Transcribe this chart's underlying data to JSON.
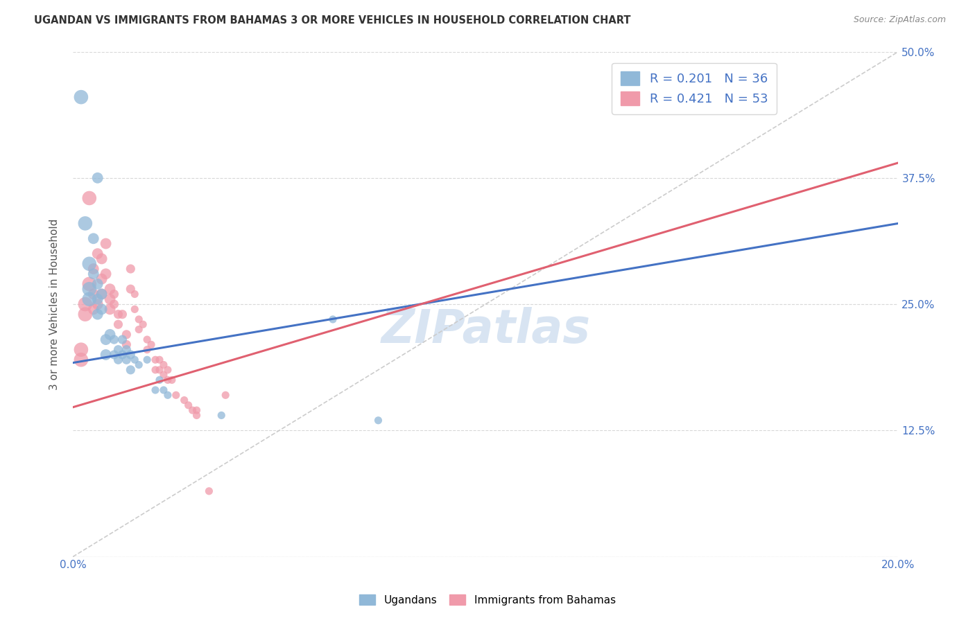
{
  "title": "UGANDAN VS IMMIGRANTS FROM BAHAMAS 3 OR MORE VEHICLES IN HOUSEHOLD CORRELATION CHART",
  "source": "Source: ZipAtlas.com",
  "ylabel": "3 or more Vehicles in Household",
  "x_min": 0.0,
  "x_max": 0.2,
  "y_min": 0.0,
  "y_max": 0.5,
  "x_ticks": [
    0.0,
    0.04,
    0.08,
    0.12,
    0.16,
    0.2
  ],
  "y_ticks_left": [
    0.0,
    0.125,
    0.25,
    0.375,
    0.5
  ],
  "y_ticks_right": [
    0.125,
    0.25,
    0.375,
    0.5
  ],
  "y_tick_labels_right": [
    "12.5%",
    "25.0%",
    "37.5%",
    "50.0%"
  ],
  "ugandan_color": "#90b8d8",
  "bahamas_color": "#f09aaa",
  "ugandan_line_color": "#4472c4",
  "bahamas_line_color": "#e06070",
  "diagonal_color": "#cccccc",
  "R_ugandan": 0.201,
  "N_ugandan": 36,
  "R_bahamas": 0.421,
  "N_bahamas": 53,
  "ug_line_x0": 0.0,
  "ug_line_y0": 0.192,
  "ug_line_x1": 0.2,
  "ug_line_y1": 0.33,
  "bah_line_x0": 0.0,
  "bah_line_y0": 0.148,
  "bah_line_x1": 0.2,
  "bah_line_y1": 0.39,
  "ugandan_scatter": [
    [
      0.002,
      0.455
    ],
    [
      0.003,
      0.33
    ],
    [
      0.004,
      0.29
    ],
    [
      0.004,
      0.265
    ],
    [
      0.004,
      0.255
    ],
    [
      0.005,
      0.315
    ],
    [
      0.005,
      0.28
    ],
    [
      0.006,
      0.375
    ],
    [
      0.006,
      0.27
    ],
    [
      0.006,
      0.255
    ],
    [
      0.006,
      0.24
    ],
    [
      0.007,
      0.26
    ],
    [
      0.007,
      0.245
    ],
    [
      0.008,
      0.215
    ],
    [
      0.008,
      0.2
    ],
    [
      0.009,
      0.22
    ],
    [
      0.01,
      0.215
    ],
    [
      0.01,
      0.2
    ],
    [
      0.011,
      0.205
    ],
    [
      0.011,
      0.195
    ],
    [
      0.012,
      0.215
    ],
    [
      0.012,
      0.2
    ],
    [
      0.013,
      0.205
    ],
    [
      0.013,
      0.195
    ],
    [
      0.014,
      0.2
    ],
    [
      0.014,
      0.185
    ],
    [
      0.015,
      0.195
    ],
    [
      0.016,
      0.19
    ],
    [
      0.018,
      0.195
    ],
    [
      0.02,
      0.165
    ],
    [
      0.021,
      0.175
    ],
    [
      0.022,
      0.165
    ],
    [
      0.023,
      0.16
    ],
    [
      0.036,
      0.14
    ],
    [
      0.063,
      0.235
    ],
    [
      0.074,
      0.135
    ]
  ],
  "bahamas_scatter": [
    [
      0.002,
      0.205
    ],
    [
      0.002,
      0.195
    ],
    [
      0.003,
      0.25
    ],
    [
      0.003,
      0.24
    ],
    [
      0.004,
      0.355
    ],
    [
      0.004,
      0.27
    ],
    [
      0.005,
      0.285
    ],
    [
      0.005,
      0.26
    ],
    [
      0.005,
      0.245
    ],
    [
      0.006,
      0.3
    ],
    [
      0.006,
      0.25
    ],
    [
      0.007,
      0.295
    ],
    [
      0.007,
      0.275
    ],
    [
      0.007,
      0.26
    ],
    [
      0.008,
      0.31
    ],
    [
      0.008,
      0.28
    ],
    [
      0.009,
      0.265
    ],
    [
      0.009,
      0.255
    ],
    [
      0.009,
      0.245
    ],
    [
      0.01,
      0.26
    ],
    [
      0.01,
      0.25
    ],
    [
      0.011,
      0.24
    ],
    [
      0.011,
      0.23
    ],
    [
      0.012,
      0.24
    ],
    [
      0.013,
      0.22
    ],
    [
      0.013,
      0.21
    ],
    [
      0.014,
      0.285
    ],
    [
      0.014,
      0.265
    ],
    [
      0.015,
      0.26
    ],
    [
      0.015,
      0.245
    ],
    [
      0.016,
      0.235
    ],
    [
      0.016,
      0.225
    ],
    [
      0.017,
      0.23
    ],
    [
      0.018,
      0.215
    ],
    [
      0.018,
      0.205
    ],
    [
      0.019,
      0.21
    ],
    [
      0.02,
      0.195
    ],
    [
      0.02,
      0.185
    ],
    [
      0.021,
      0.195
    ],
    [
      0.021,
      0.185
    ],
    [
      0.022,
      0.19
    ],
    [
      0.022,
      0.18
    ],
    [
      0.023,
      0.185
    ],
    [
      0.023,
      0.175
    ],
    [
      0.024,
      0.175
    ],
    [
      0.025,
      0.16
    ],
    [
      0.027,
      0.155
    ],
    [
      0.028,
      0.15
    ],
    [
      0.029,
      0.145
    ],
    [
      0.03,
      0.145
    ],
    [
      0.03,
      0.14
    ],
    [
      0.033,
      0.065
    ],
    [
      0.037,
      0.16
    ]
  ],
  "watermark": "ZIPatlas",
  "background_color": "#ffffff",
  "grid_color": "#d8d8d8"
}
